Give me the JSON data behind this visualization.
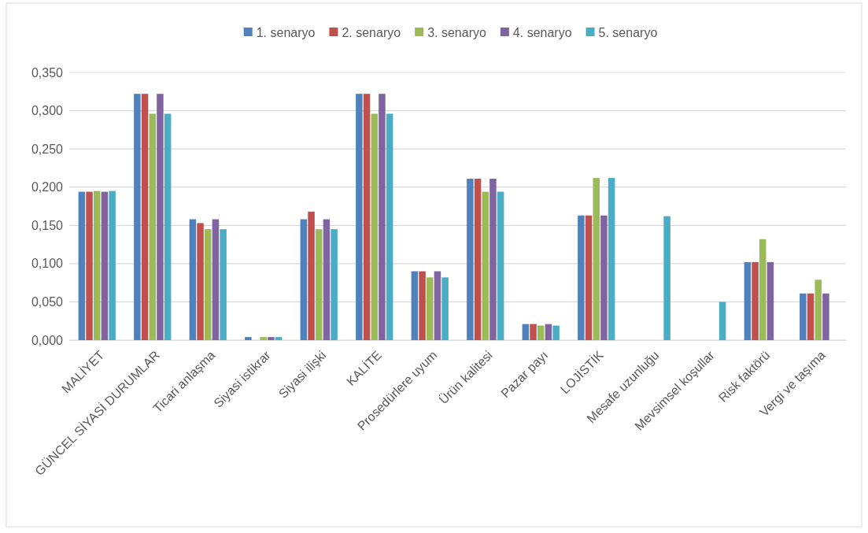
{
  "chart_data": {
    "type": "bar",
    "categories": [
      "MALİYET",
      "GÜNCEL SİYASİ DURUMLAR",
      "Ticari anlaşma",
      "Siyasi istikrar",
      "Siyasi ilişki",
      "KALİTE",
      "Prosedürlere uyum",
      "Ürün kalitesi",
      "Pazar payı",
      "LOJİSTİK",
      "Mesafe uzunluğu",
      "Mevsimsel koşullar",
      "Risk faktörü",
      "Vergi ve taşıma"
    ],
    "series": [
      {
        "name": "1. senaryo",
        "color": "#4f81bd",
        "values": [
          0.194,
          0.322,
          0.158,
          0.004,
          0.158,
          0.322,
          0.09,
          0.211,
          0.021,
          0.163,
          null,
          null,
          0.102,
          0.061
        ]
      },
      {
        "name": "2. senaryo",
        "color": "#c0504d",
        "values": [
          0.194,
          0.322,
          0.153,
          null,
          0.168,
          0.322,
          0.09,
          0.211,
          0.021,
          0.163,
          null,
          null,
          0.102,
          0.061
        ]
      },
      {
        "name": "3. senaryo",
        "color": "#9bbb59",
        "values": [
          0.195,
          0.296,
          0.145,
          0.004,
          0.145,
          0.296,
          0.082,
          0.194,
          0.019,
          0.212,
          null,
          null,
          0.132,
          0.079
        ]
      },
      {
        "name": "4. senaryo",
        "color": "#8064a2",
        "values": [
          0.194,
          0.322,
          0.158,
          0.004,
          0.158,
          0.322,
          0.09,
          0.211,
          0.021,
          0.163,
          null,
          null,
          0.102,
          0.061
        ]
      },
      {
        "name": "5. senaryo",
        "color": "#4bacc6",
        "values": [
          0.195,
          0.296,
          0.145,
          0.004,
          0.145,
          0.296,
          0.082,
          0.194,
          0.019,
          0.212,
          0.162,
          0.05,
          null,
          null
        ]
      }
    ],
    "ylim": [
      0,
      0.35
    ],
    "yticks": [
      {
        "value": 0,
        "label": "0,000"
      },
      {
        "value": 0.05,
        "label": "0,050"
      },
      {
        "value": 0.1,
        "label": "0,100"
      },
      {
        "value": 0.15,
        "label": "0,150"
      },
      {
        "value": 0.2,
        "label": "0,200"
      },
      {
        "value": 0.25,
        "label": "0,250"
      },
      {
        "value": 0.3,
        "label": "0,300"
      },
      {
        "value": 0.35,
        "label": "0,350"
      }
    ],
    "grid": "y",
    "legend": "top"
  }
}
